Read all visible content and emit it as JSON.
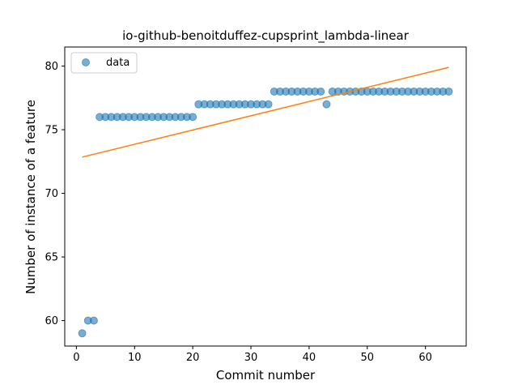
{
  "chart_data": {
    "type": "scatter",
    "title": "io-github-benoitduffez-cupsprint_lambda-linear",
    "xlabel": "Commit number",
    "ylabel": "Number of instance of a feature",
    "xlim": [
      -2,
      67
    ],
    "ylim": [
      58.0,
      81.5
    ],
    "xticks": [
      0,
      10,
      20,
      30,
      40,
      50,
      60
    ],
    "yticks": [
      60,
      65,
      70,
      75,
      80
    ],
    "legend_position": "upper-left",
    "series": [
      {
        "name": "data",
        "type": "scatter",
        "color": "#1f77b4",
        "x": [
          1,
          2,
          3,
          4,
          5,
          6,
          7,
          8,
          9,
          10,
          11,
          12,
          13,
          14,
          15,
          16,
          17,
          18,
          19,
          20,
          21,
          22,
          23,
          24,
          25,
          26,
          27,
          28,
          29,
          30,
          31,
          32,
          33,
          34,
          35,
          36,
          37,
          38,
          39,
          40,
          41,
          42,
          43,
          44,
          45,
          46,
          47,
          48,
          49,
          50,
          51,
          52,
          53,
          54,
          55,
          56,
          57,
          58,
          59,
          60,
          61,
          62,
          63,
          64
        ],
        "y": [
          59,
          60,
          60,
          76,
          76,
          76,
          76,
          76,
          76,
          76,
          76,
          76,
          76,
          76,
          76,
          76,
          76,
          76,
          76,
          76,
          77,
          77,
          77,
          77,
          77,
          77,
          77,
          77,
          77,
          77,
          77,
          77,
          77,
          78,
          78,
          78,
          78,
          78,
          78,
          78,
          78,
          78,
          77,
          78,
          78,
          78,
          78,
          78,
          78,
          78,
          78,
          78,
          78,
          78,
          78,
          78,
          78,
          78,
          78,
          78,
          78,
          78,
          78,
          78
        ]
      },
      {
        "type": "line",
        "color": "#ff7f0e",
        "x": [
          1,
          64
        ],
        "y": [
          72.85,
          79.9
        ]
      }
    ]
  }
}
